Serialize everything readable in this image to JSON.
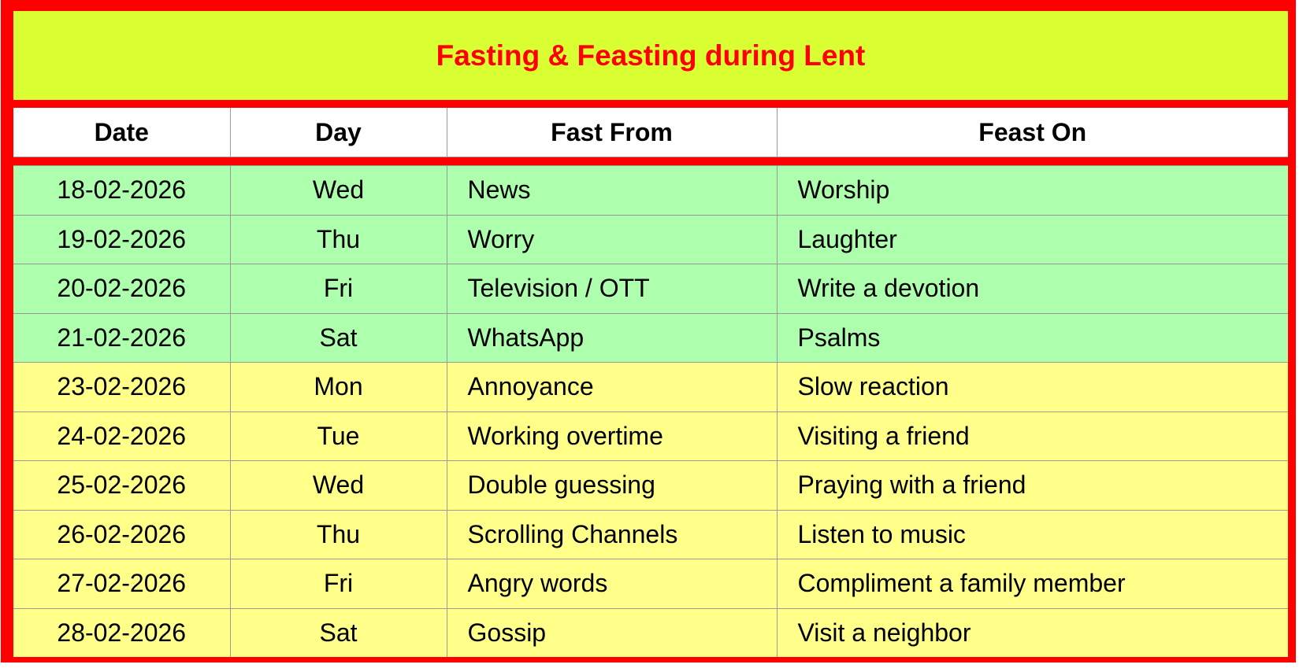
{
  "title": "Fasting & Feasting during Lent",
  "colors": {
    "border": "#ff0000",
    "title_bg": "#d9ff33",
    "title_text": "#ff0000",
    "green_rows": "#adffad",
    "yellow_rows": "#ffff8a"
  },
  "columns": [
    "Date",
    "Day",
    "Fast From",
    "Feast On"
  ],
  "rows": [
    {
      "date": "18-02-2026",
      "day": "Wed",
      "fast": "News",
      "feast": "Worship",
      "color": "green"
    },
    {
      "date": "19-02-2026",
      "day": "Thu",
      "fast": "Worry",
      "feast": "Laughter",
      "color": "green"
    },
    {
      "date": "20-02-2026",
      "day": "Fri",
      "fast": "Television / OTT",
      "feast": "Write a devotion",
      "color": "green"
    },
    {
      "date": "21-02-2026",
      "day": "Sat",
      "fast": "WhatsApp",
      "feast": "Psalms",
      "color": "green"
    },
    {
      "date": "23-02-2026",
      "day": "Mon",
      "fast": "Annoyance",
      "feast": "Slow reaction",
      "color": "yellow"
    },
    {
      "date": "24-02-2026",
      "day": "Tue",
      "fast": "Working overtime",
      "feast": "Visiting a friend",
      "color": "yellow"
    },
    {
      "date": "25-02-2026",
      "day": "Wed",
      "fast": "Double guessing",
      "feast": "Praying with a friend",
      "color": "yellow"
    },
    {
      "date": "26-02-2026",
      "day": "Thu",
      "fast": "Scrolling Channels",
      "feast": "Listen to music",
      "color": "yellow"
    },
    {
      "date": "27-02-2026",
      "day": "Fri",
      "fast": "Angry words",
      "feast": "Compliment a family member",
      "color": "yellow"
    },
    {
      "date": "28-02-2026",
      "day": "Sat",
      "fast": "Gossip",
      "feast": "Visit a neighbor",
      "color": "yellow"
    }
  ]
}
